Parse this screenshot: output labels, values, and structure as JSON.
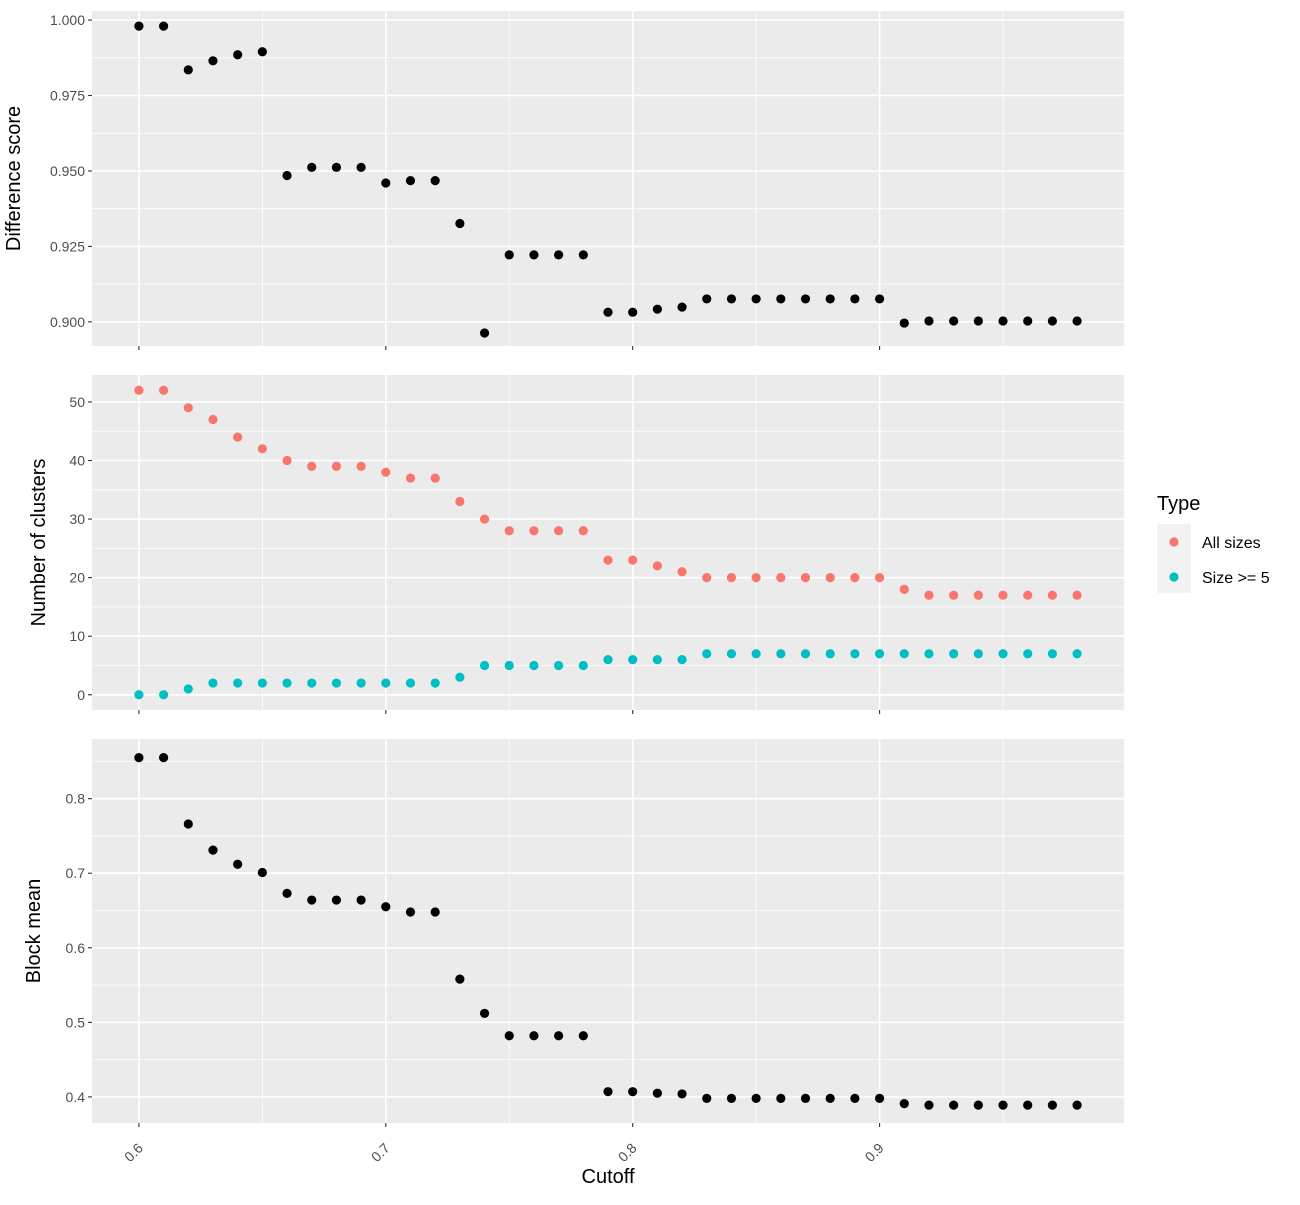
{
  "chart_data": {
    "type": "scatter",
    "xlabel": "Cutoff",
    "x_ticks": [
      0.6,
      0.7,
      0.8,
      0.9
    ],
    "x_tick_labels": [
      "0.6",
      "0.7",
      "0.8",
      "0.9"
    ],
    "xlim": [
      0.581,
      0.999
    ],
    "grid": true,
    "panels": [
      {
        "id": "difference",
        "ylabel": "Difference score",
        "ylim": [
          0.892,
          1.003
        ],
        "y_ticks": [
          0.9,
          0.925,
          0.95,
          0.975,
          1.0
        ],
        "y_tick_labels": [
          "0.900",
          "0.925",
          "0.950",
          "0.975",
          "1.000"
        ],
        "series": [
          {
            "color": "#000000",
            "x": [
              0.6,
              0.61,
              0.62,
              0.63,
              0.64,
              0.65,
              0.66,
              0.67,
              0.68,
              0.69,
              0.7,
              0.71,
              0.72,
              0.73,
              0.74,
              0.75,
              0.76,
              0.77,
              0.78,
              0.79,
              0.8,
              0.81,
              0.82,
              0.83,
              0.84,
              0.85,
              0.86,
              0.87,
              0.88,
              0.89,
              0.9,
              0.91,
              0.92,
              0.93,
              0.94,
              0.95,
              0.96,
              0.97,
              0.98
            ],
            "y": [
              0.998,
              0.998,
              0.9835,
              0.9865,
              0.9885,
              0.9895,
              0.9485,
              0.9512,
              0.9512,
              0.9512,
              0.946,
              0.9468,
              0.9468,
              0.9326,
              0.8963,
              0.9222,
              0.9222,
              0.9222,
              0.9222,
              0.9032,
              0.9032,
              0.9042,
              0.9049,
              0.9076,
              0.9076,
              0.9076,
              0.9076,
              0.9076,
              0.9076,
              0.9076,
              0.9076,
              0.8996,
              0.9003,
              0.9003,
              0.9003,
              0.9003,
              0.9003,
              0.9003,
              0.9003
            ]
          }
        ]
      },
      {
        "id": "clusters",
        "ylabel": "Number of clusters",
        "ylim": [
          -2.6,
          54.6
        ],
        "y_ticks": [
          0,
          10,
          20,
          30,
          40,
          50
        ],
        "y_tick_labels": [
          "0",
          "10",
          "20",
          "30",
          "40",
          "50"
        ],
        "series": [
          {
            "name": "All sizes",
            "color": "#F8766D",
            "x": [
              0.6,
              0.61,
              0.62,
              0.63,
              0.64,
              0.65,
              0.66,
              0.67,
              0.68,
              0.69,
              0.7,
              0.71,
              0.72,
              0.73,
              0.74,
              0.75,
              0.76,
              0.77,
              0.78,
              0.79,
              0.8,
              0.81,
              0.82,
              0.83,
              0.84,
              0.85,
              0.86,
              0.87,
              0.88,
              0.89,
              0.9,
              0.91,
              0.92,
              0.93,
              0.94,
              0.95,
              0.96,
              0.97,
              0.98
            ],
            "y": [
              52,
              52,
              49,
              47,
              44,
              42,
              40,
              39,
              39,
              39,
              38,
              37,
              37,
              33,
              30,
              28,
              28,
              28,
              28,
              23,
              23,
              22,
              21,
              20,
              20,
              20,
              20,
              20,
              20,
              20,
              20,
              18,
              17,
              17,
              17,
              17,
              17,
              17,
              17
            ]
          },
          {
            "name": "Size >= 5",
            "color": "#00BFC4",
            "x": [
              0.6,
              0.61,
              0.62,
              0.63,
              0.64,
              0.65,
              0.66,
              0.67,
              0.68,
              0.69,
              0.7,
              0.71,
              0.72,
              0.73,
              0.74,
              0.75,
              0.76,
              0.77,
              0.78,
              0.79,
              0.8,
              0.81,
              0.82,
              0.83,
              0.84,
              0.85,
              0.86,
              0.87,
              0.88,
              0.89,
              0.9,
              0.91,
              0.92,
              0.93,
              0.94,
              0.95,
              0.96,
              0.97,
              0.98
            ],
            "y": [
              0,
              0,
              1,
              2,
              2,
              2,
              2,
              2,
              2,
              2,
              2,
              2,
              2,
              3,
              5,
              5,
              5,
              5,
              5,
              6,
              6,
              6,
              6,
              7,
              7,
              7,
              7,
              7,
              7,
              7,
              7,
              7,
              7,
              7,
              7,
              7,
              7,
              7,
              7
            ]
          }
        ]
      },
      {
        "id": "blockmean",
        "ylabel": "Block mean",
        "ylim": [
          0.365,
          0.88
        ],
        "y_ticks": [
          0.4,
          0.5,
          0.6,
          0.7,
          0.8
        ],
        "y_tick_labels": [
          "0.4",
          "0.5",
          "0.6",
          "0.7",
          "0.8"
        ],
        "series": [
          {
            "color": "#000000",
            "x": [
              0.6,
              0.61,
              0.62,
              0.63,
              0.64,
              0.65,
              0.66,
              0.67,
              0.68,
              0.69,
              0.7,
              0.71,
              0.72,
              0.73,
              0.74,
              0.75,
              0.76,
              0.77,
              0.78,
              0.79,
              0.8,
              0.81,
              0.82,
              0.83,
              0.84,
              0.85,
              0.86,
              0.87,
              0.88,
              0.89,
              0.9,
              0.91,
              0.92,
              0.93,
              0.94,
              0.95,
              0.96,
              0.97,
              0.98
            ],
            "y": [
              0.855,
              0.855,
              0.766,
              0.731,
              0.712,
              0.701,
              0.673,
              0.664,
              0.664,
              0.664,
              0.655,
              0.648,
              0.648,
              0.558,
              0.512,
              0.482,
              0.482,
              0.482,
              0.482,
              0.407,
              0.407,
              0.405,
              0.404,
              0.398,
              0.398,
              0.398,
              0.398,
              0.398,
              0.398,
              0.398,
              0.398,
              0.391,
              0.389,
              0.389,
              0.389,
              0.389,
              0.389,
              0.389,
              0.389
            ]
          }
        ]
      }
    ],
    "legend": {
      "title": "Type",
      "position": "right",
      "items": [
        {
          "label": "All sizes",
          "color": "#F8766D"
        },
        {
          "label": "Size >= 5",
          "color": "#00BFC4"
        }
      ]
    }
  }
}
